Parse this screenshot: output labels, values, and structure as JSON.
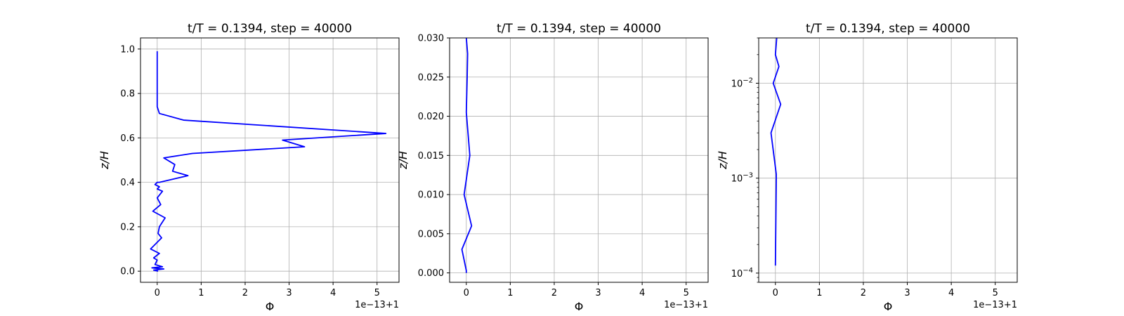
{
  "chart_data": [
    {
      "type": "line",
      "title": "t/T = 0.1394, step = 40000",
      "xlabel": "Φ",
      "ylabel": "z/H",
      "x_offset_label": "1e−13+1",
      "xlim": [
        -0.38,
        5.5
      ],
      "ylim": [
        -0.05,
        1.05
      ],
      "yscale": "linear",
      "grid": true,
      "line_color": "#0000ff",
      "x_ticks": [
        0,
        1,
        2,
        3,
        4,
        5
      ],
      "x_tick_labels": [
        "0",
        "1",
        "2",
        "3",
        "4",
        "5"
      ],
      "y_ticks": [
        0.0,
        0.2,
        0.4,
        0.6,
        0.8,
        1.0
      ],
      "y_tick_labels": [
        "0.0",
        "0.2",
        "0.4",
        "0.6",
        "0.8",
        "1.0"
      ],
      "series": [
        {
          "x": [
            0.02,
            -0.08,
            0.15,
            -0.12,
            0.12,
            -0.05,
            0.0,
            -0.08,
            0.05,
            -0.15,
            0.1,
            0.02,
            0.05,
            0.18,
            -0.1,
            0.08,
            0.0,
            0.12,
            0.0,
            0.05,
            -0.05,
            0.0,
            0.05,
            0.7,
            0.35,
            0.4,
            0.15,
            0.8,
            3.35,
            2.85,
            5.2,
            0.6,
            0.05,
            0.0,
            0.0,
            0.0,
            0.0
          ],
          "y": [
            0.0,
            0.005,
            0.01,
            0.015,
            0.02,
            0.03,
            0.05,
            0.06,
            0.08,
            0.1,
            0.15,
            0.17,
            0.2,
            0.24,
            0.27,
            0.3,
            0.33,
            0.36,
            0.37,
            0.38,
            0.39,
            0.4,
            0.4,
            0.43,
            0.45,
            0.48,
            0.51,
            0.53,
            0.56,
            0.59,
            0.62,
            0.68,
            0.71,
            0.74,
            0.8,
            0.9,
            0.99
          ]
        }
      ]
    },
    {
      "type": "line",
      "title": "t/T = 0.1394, step = 40000",
      "xlabel": "Φ",
      "ylabel": "z/H",
      "x_offset_label": "1e−13+1",
      "xlim": [
        -0.38,
        5.5
      ],
      "ylim": [
        -0.0012,
        0.03
      ],
      "yscale": "linear",
      "grid": true,
      "line_color": "#0000ff",
      "x_ticks": [
        0,
        1,
        2,
        3,
        4,
        5
      ],
      "x_tick_labels": [
        "0",
        "1",
        "2",
        "3",
        "4",
        "5"
      ],
      "y_ticks": [
        0.0,
        0.005,
        0.01,
        0.015,
        0.02,
        0.025,
        0.03
      ],
      "y_tick_labels": [
        "0.000",
        "0.005",
        "0.010",
        "0.015",
        "0.020",
        "0.025",
        "0.030"
      ],
      "series": [
        {
          "x": [
            0.0,
            0.0,
            -0.1,
            0.12,
            -0.05,
            0.08,
            0.0,
            0.02,
            0.03,
            0.0
          ],
          "y": [
            0.0,
            0.0003,
            0.003,
            0.006,
            0.01,
            0.015,
            0.0205,
            0.025,
            0.028,
            0.03
          ]
        }
      ]
    },
    {
      "type": "line",
      "title": "t/T = 0.1394, step = 40000",
      "xlabel": "Φ",
      "ylabel": "z/H",
      "x_offset_label": "1e−13+1",
      "xlim": [
        -0.38,
        5.5
      ],
      "ylim": [
        8e-05,
        0.03
      ],
      "yscale": "log",
      "grid": true,
      "line_color": "#0000ff",
      "x_ticks": [
        0,
        1,
        2,
        3,
        4,
        5
      ],
      "x_tick_labels": [
        "0",
        "1",
        "2",
        "3",
        "4",
        "5"
      ],
      "y_ticks": [
        0.0001,
        0.001,
        0.01
      ],
      "y_tick_labels": [
        {
          "base": "10",
          "exp": "−4"
        },
        {
          "base": "10",
          "exp": "−3"
        },
        {
          "base": "10",
          "exp": "−2"
        }
      ],
      "series": [
        {
          "x": [
            0.0,
            0.02,
            0.02,
            -0.1,
            0.12,
            -0.05,
            0.08,
            0.0,
            0.03
          ],
          "y": [
            0.00012,
            0.001,
            0.0011,
            0.003,
            0.006,
            0.01,
            0.015,
            0.02,
            0.03
          ]
        }
      ]
    }
  ]
}
